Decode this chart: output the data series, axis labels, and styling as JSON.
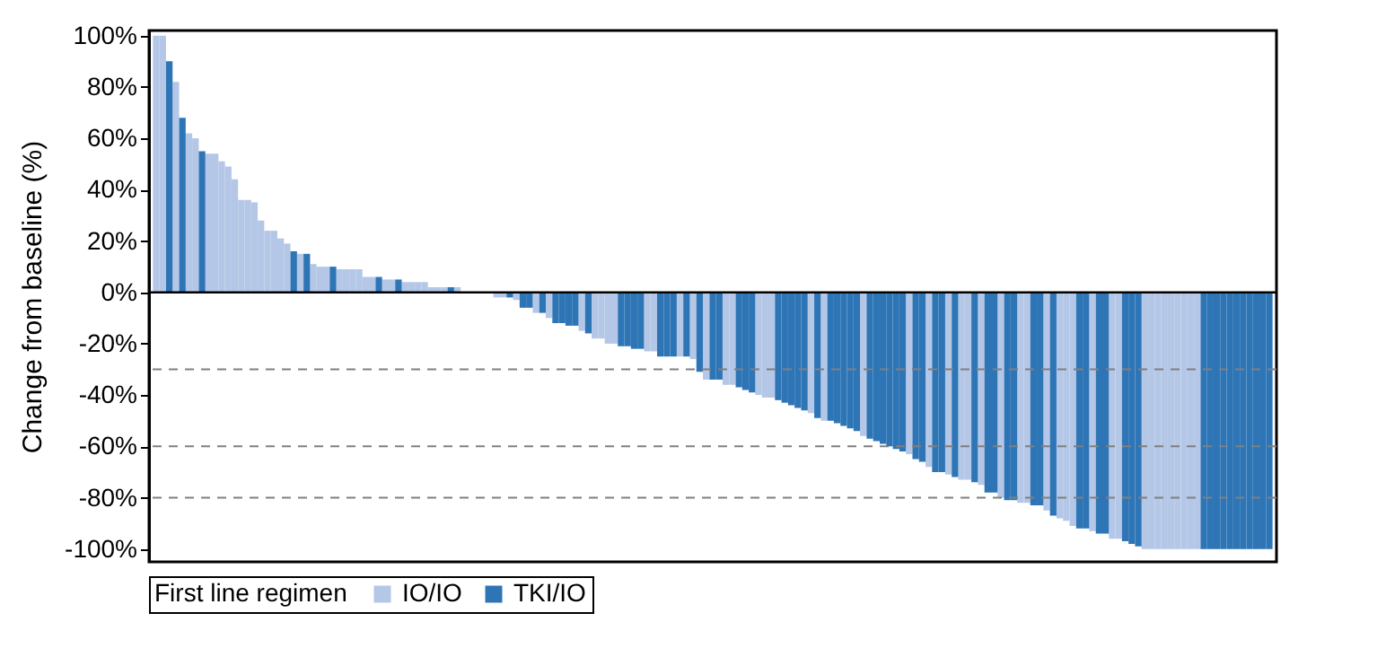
{
  "chart_data": {
    "type": "bar",
    "ylabel": "Change from baseline (%)",
    "legend_title": "First line regimen",
    "legend": "bottom",
    "tick_labels": "y",
    "grid": false,
    "categories": [
      null,
      null,
      null,
      null,
      null,
      null,
      null,
      null,
      null,
      null,
      null,
      null,
      null,
      null,
      null,
      null,
      null,
      null,
      null,
      null,
      null,
      null,
      null,
      null,
      null,
      null,
      null,
      null,
      null,
      null,
      null,
      null,
      null,
      null,
      null,
      null,
      null,
      null,
      null,
      null,
      null,
      null,
      null,
      null,
      null,
      null,
      null,
      null,
      null,
      null,
      null,
      null,
      null,
      null,
      null,
      null,
      null,
      null,
      null,
      null,
      null,
      null,
      null,
      null,
      null,
      null,
      null,
      null,
      null,
      null,
      null,
      null,
      null,
      null,
      null,
      null,
      null,
      null,
      null,
      null,
      null,
      null,
      null,
      null,
      null,
      null,
      null,
      null,
      null,
      null,
      null,
      null,
      null,
      null,
      null,
      null,
      null,
      null,
      null,
      null,
      null,
      null,
      null,
      null,
      null,
      null,
      null,
      null,
      null,
      null,
      null,
      null,
      null,
      null,
      null,
      null,
      null,
      null,
      null,
      null,
      null,
      null,
      null,
      null,
      null,
      null,
      null,
      null,
      null,
      null,
      null,
      null,
      null,
      null,
      null,
      null,
      null,
      null,
      null,
      null,
      null,
      null,
      null,
      null,
      null,
      null,
      null,
      null,
      null,
      null,
      null,
      null,
      null,
      null,
      null,
      null,
      null,
      null,
      null,
      null,
      null,
      null,
      null,
      null,
      null,
      null,
      null,
      null,
      null,
      null,
      null
    ],
    "series": [
      {
        "name": "IO/IO",
        "color": "#b4c7e7",
        "values": [
          100,
          100,
          null,
          82,
          null,
          62,
          60,
          null,
          54,
          54,
          51,
          49,
          44,
          36,
          36,
          35,
          28,
          24,
          24,
          21,
          19,
          null,
          15,
          null,
          11,
          10,
          10,
          null,
          9,
          9,
          9,
          9,
          6,
          6,
          null,
          5,
          5,
          null,
          4,
          4,
          4,
          4,
          2,
          2,
          2,
          null,
          2,
          0,
          0,
          0,
          0,
          0,
          -2,
          -2,
          null,
          -3,
          null,
          null,
          -8,
          null,
          -10,
          null,
          null,
          null,
          null,
          -15,
          null,
          -18,
          -18,
          -20,
          -20,
          null,
          null,
          null,
          null,
          -23,
          -23,
          null,
          null,
          null,
          -25,
          null,
          -26,
          null,
          -34,
          null,
          null,
          -36,
          -36,
          null,
          null,
          null,
          -40,
          -41,
          -41,
          null,
          null,
          null,
          null,
          null,
          -47,
          null,
          -50,
          null,
          null,
          null,
          null,
          null,
          -56,
          null,
          null,
          null,
          null,
          null,
          null,
          -63,
          null,
          null,
          -68,
          null,
          null,
          -71,
          null,
          -73,
          -73,
          null,
          -75,
          null,
          null,
          -80,
          null,
          null,
          -82,
          -82,
          null,
          null,
          -85,
          null,
          -88,
          -89,
          -91,
          null,
          null,
          -93,
          null,
          null,
          -96,
          -96,
          null,
          null,
          null,
          -100,
          -100,
          -100,
          -100,
          -100,
          -100,
          -100,
          -100,
          -100,
          null,
          null,
          null,
          null,
          null,
          null,
          null,
          null,
          null,
          null,
          null
        ]
      },
      {
        "name": "TKI/IO",
        "color": "#2e75b6",
        "values": [
          null,
          null,
          90,
          null,
          68,
          null,
          null,
          55,
          null,
          null,
          null,
          null,
          null,
          null,
          null,
          null,
          null,
          null,
          null,
          null,
          null,
          16,
          null,
          15,
          null,
          null,
          null,
          10,
          null,
          null,
          null,
          null,
          null,
          null,
          6,
          null,
          null,
          5,
          null,
          null,
          null,
          null,
          null,
          null,
          null,
          2,
          null,
          null,
          null,
          null,
          null,
          null,
          null,
          null,
          -2,
          null,
          -6,
          -6,
          null,
          -8,
          null,
          -12,
          -12,
          -13,
          -13,
          null,
          -16,
          null,
          null,
          null,
          null,
          -21,
          -21,
          -22,
          -22,
          null,
          null,
          -25,
          -25,
          -25,
          null,
          -25,
          null,
          -31,
          null,
          -34,
          -34,
          null,
          null,
          -37,
          -38,
          -39,
          null,
          null,
          null,
          -42,
          -43,
          -44,
          -45,
          -46,
          null,
          -49,
          null,
          -50,
          -51,
          -52,
          -53,
          -54,
          null,
          -57,
          -58,
          -59,
          -60,
          -61,
          -62,
          null,
          -65,
          -66,
          null,
          -70,
          -70,
          null,
          -72,
          null,
          null,
          -74,
          null,
          -78,
          -78,
          null,
          -81,
          -81,
          null,
          null,
          -83,
          -83,
          null,
          -87,
          null,
          null,
          null,
          -92,
          -92,
          null,
          -94,
          -94,
          null,
          null,
          -97,
          -98,
          -99,
          null,
          null,
          null,
          null,
          null,
          null,
          null,
          null,
          null,
          -100,
          -100,
          -100,
          -100,
          -100,
          -100,
          -100,
          -100,
          -100,
          -100,
          -100
        ]
      }
    ],
    "ylim": [
      -105,
      102
    ],
    "yticks": [
      {
        "value": -100,
        "label": "-100%"
      },
      {
        "value": -80,
        "label": "-80%"
      },
      {
        "value": -60,
        "label": "-60%"
      },
      {
        "value": -40,
        "label": "-40%"
      },
      {
        "value": -20,
        "label": "-20%"
      },
      {
        "value": 0,
        "label": "0%"
      },
      {
        "value": 20,
        "label": "20%"
      },
      {
        "value": 40,
        "label": "40%"
      },
      {
        "value": 60,
        "label": "60%"
      },
      {
        "value": 80,
        "label": "80%"
      },
      {
        "value": 100,
        "label": "100%"
      }
    ],
    "ref_lines": [
      {
        "axis": "y",
        "value": 0,
        "color": "#000000",
        "line_style": "solid"
      },
      {
        "axis": "y",
        "value": -30,
        "color": "#808080",
        "line_style": "dashed"
      },
      {
        "axis": "y",
        "value": -60,
        "color": "#808080",
        "line_style": "dashed"
      },
      {
        "axis": "y",
        "value": -80,
        "color": "#808080",
        "line_style": "dashed"
      }
    ]
  }
}
